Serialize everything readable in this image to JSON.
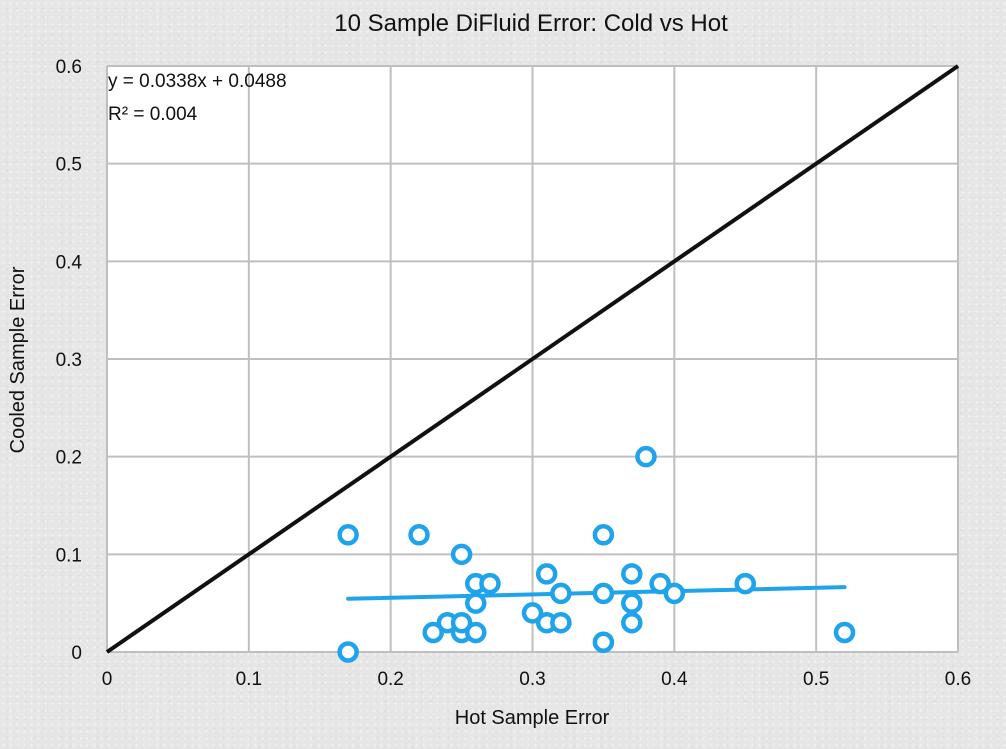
{
  "chart_data": {
    "type": "scatter",
    "title": "10 Sample DiFluid Error: Cold vs Hot",
    "xlabel": "Hot Sample Error",
    "ylabel": "Cooled Sample Error",
    "xlim": [
      0,
      0.6
    ],
    "ylim": [
      0,
      0.6
    ],
    "x_ticks": [
      "0",
      "0.1",
      "0.2",
      "0.3",
      "0.4",
      "0.5",
      "0.6"
    ],
    "y_ticks": [
      "0",
      "0.1",
      "0.2",
      "0.3",
      "0.4",
      "0.5",
      "0.6"
    ],
    "grid": true,
    "legend": "none",
    "series": [
      {
        "marker": "hollow-circle",
        "color": "#1fa3ea",
        "points": [
          [
            0.17,
            0.12
          ],
          [
            0.22,
            0.12
          ],
          [
            0.25,
            0.1
          ],
          [
            0.35,
            0.12
          ],
          [
            0.38,
            0.2
          ],
          [
            0.17,
            0.0
          ],
          [
            0.23,
            0.02
          ],
          [
            0.24,
            0.03
          ],
          [
            0.25,
            0.02
          ],
          [
            0.25,
            0.03
          ],
          [
            0.26,
            0.02
          ],
          [
            0.26,
            0.05
          ],
          [
            0.26,
            0.07
          ],
          [
            0.27,
            0.07
          ],
          [
            0.3,
            0.04
          ],
          [
            0.31,
            0.03
          ],
          [
            0.31,
            0.08
          ],
          [
            0.32,
            0.03
          ],
          [
            0.32,
            0.06
          ],
          [
            0.35,
            0.01
          ],
          [
            0.35,
            0.06
          ],
          [
            0.37,
            0.03
          ],
          [
            0.37,
            0.05
          ],
          [
            0.37,
            0.08
          ],
          [
            0.39,
            0.07
          ],
          [
            0.4,
            0.06
          ],
          [
            0.45,
            0.07
          ],
          [
            0.52,
            0.02
          ]
        ]
      }
    ],
    "trendline": {
      "slope": 0.0338,
      "intercept": 0.0488,
      "x_range": [
        0.17,
        0.52
      ],
      "color": "#1fa3ea"
    },
    "reference_line": {
      "from": [
        0,
        0
      ],
      "to": [
        0.6,
        0.6
      ],
      "color": "#111111"
    },
    "annotations": {
      "equation": "y = 0.0338x + 0.0488",
      "r2": "R² = 0.004"
    }
  }
}
